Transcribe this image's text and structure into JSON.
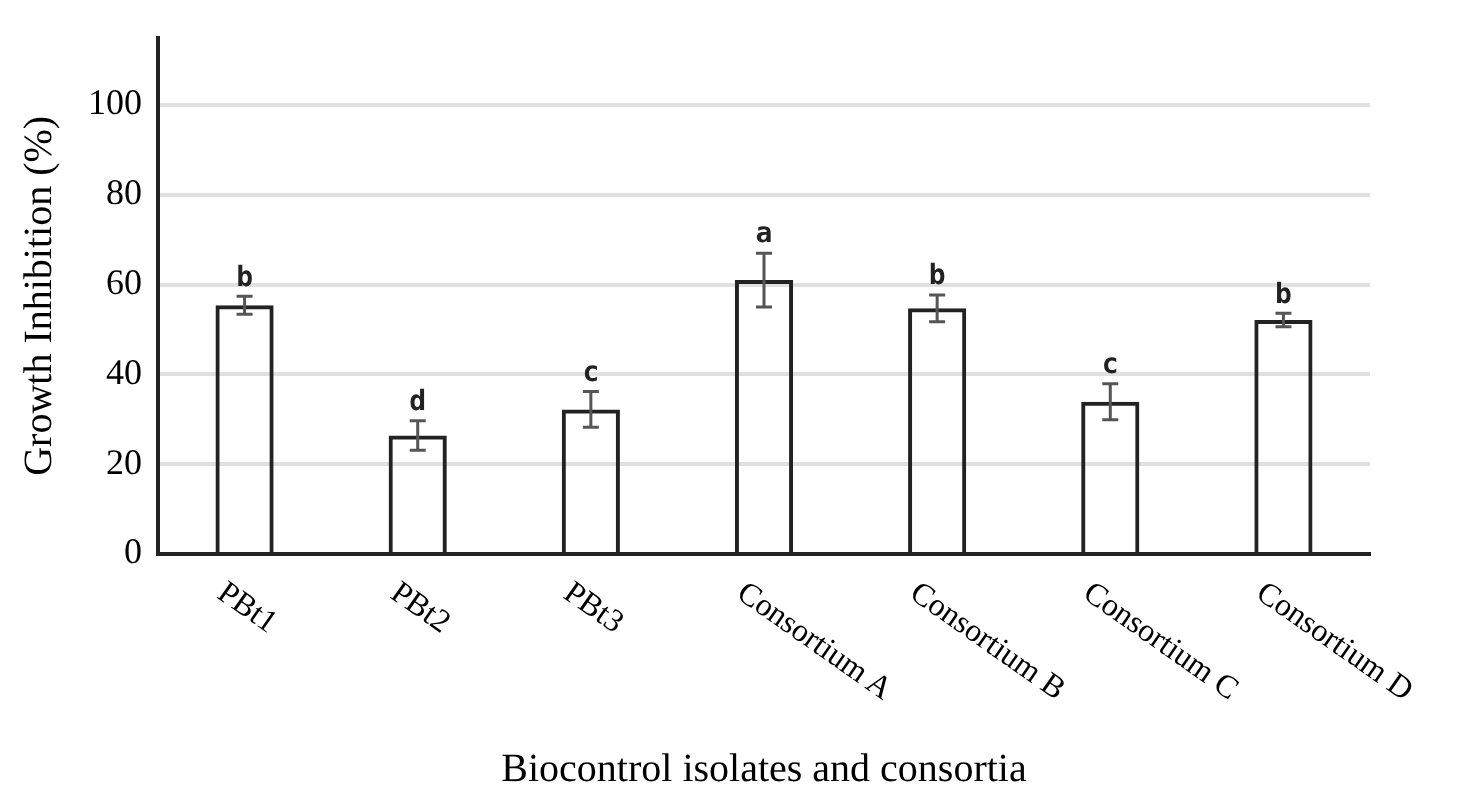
{
  "chart_data": {
    "type": "bar",
    "xlabel": "Biocontrol isolates and consortia",
    "ylabel": "Growth Inhibition (%)",
    "categories": [
      "PBt1",
      "PBt2",
      "PBt3",
      "Consortium A",
      "Consortium B",
      "Consortium C",
      "Consortium D"
    ],
    "values": [
      55.4,
      26.4,
      32.2,
      61.0,
      54.7,
      33.9,
      52.1
    ],
    "errors": [
      2,
      3.3,
      4,
      6,
      3,
      4,
      1.5
    ],
    "color": "#222222",
    "ylim": [
      0,
      115
    ],
    "yticks": [
      0,
      20,
      40,
      60,
      80,
      100
    ],
    "grid": "y",
    "annotations": [
      {
        "text": "b",
        "x": "PBt1",
        "y": 55.4
      },
      {
        "text": "d",
        "x": "PBt2",
        "y": 26.4
      },
      {
        "text": "c",
        "x": "PBt3",
        "y": 32.2
      },
      {
        "text": "a",
        "x": "Consortium A",
        "y": 61.0
      },
      {
        "text": "b",
        "x": "Consortium B",
        "y": 54.7
      },
      {
        "text": "c",
        "x": "Consortium C",
        "y": 33.9
      },
      {
        "text": "b",
        "x": "Consortium D",
        "y": 52.1
      }
    ]
  }
}
